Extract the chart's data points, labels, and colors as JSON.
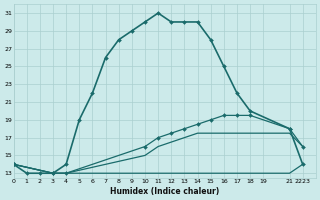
{
  "xlabel": "Humidex (Indice chaleur)",
  "bg_color": "#cceaea",
  "line_color": "#1a6b6b",
  "grid_color": "#aacfcf",
  "xlim": [
    0,
    23
  ],
  "ylim": [
    12.5,
    32
  ],
  "yticks": [
    13,
    15,
    17,
    19,
    21,
    23,
    25,
    27,
    29,
    31
  ],
  "xtick_positions": [
    0,
    1,
    2,
    3,
    4,
    5,
    6,
    7,
    8,
    9,
    10,
    11,
    12,
    13,
    14,
    15,
    16,
    17,
    18,
    19,
    21,
    22,
    23
  ],
  "xtick_labels": [
    "0",
    "1",
    "2",
    "3",
    "4",
    "5",
    "6",
    "7",
    "8",
    "9",
    "10",
    "11",
    "12",
    "13",
    "14",
    "15",
    "16",
    "17",
    "18",
    "19",
    "21",
    "2223",
    ""
  ],
  "series": [
    {
      "x": [
        0,
        1,
        2,
        3,
        4,
        5,
        6,
        7,
        8,
        9,
        10,
        11,
        12,
        13,
        14,
        15,
        16,
        17,
        18,
        21,
        22
      ],
      "y": [
        14,
        13,
        13,
        13,
        14,
        19,
        22,
        26,
        28,
        29,
        30,
        31,
        30,
        30,
        30,
        28,
        25,
        22,
        20,
        18,
        14
      ],
      "marker": true,
      "linewidth": 1.2
    },
    {
      "x": [
        0,
        3,
        4,
        21,
        22
      ],
      "y": [
        14,
        13,
        13,
        13,
        14
      ],
      "marker": false,
      "linewidth": 0.9
    },
    {
      "x": [
        0,
        3,
        4,
        10,
        11,
        12,
        13,
        14,
        15,
        16,
        17,
        18,
        21,
        22
      ],
      "y": [
        14,
        13,
        13,
        15,
        16,
        16.5,
        17,
        17.5,
        17.5,
        17.5,
        17.5,
        17.5,
        17.5,
        16
      ],
      "marker": false,
      "linewidth": 0.9
    },
    {
      "x": [
        0,
        3,
        4,
        10,
        11,
        12,
        13,
        14,
        15,
        16,
        17,
        18,
        21,
        22
      ],
      "y": [
        14,
        13,
        13,
        16,
        17,
        17.5,
        18,
        18.5,
        19,
        19.5,
        19.5,
        19.5,
        18,
        16
      ],
      "marker": true,
      "linewidth": 0.9
    }
  ]
}
